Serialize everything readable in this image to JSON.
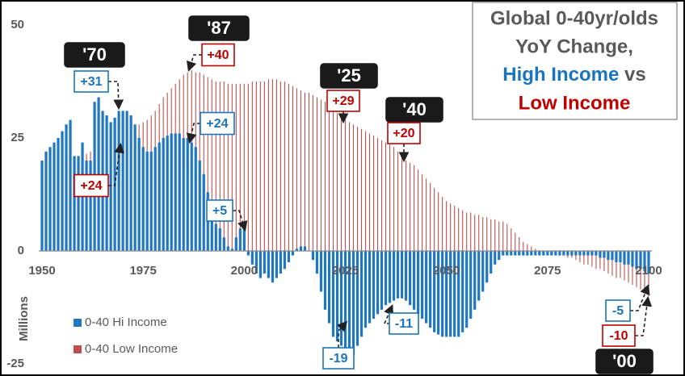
{
  "chart_data": {
    "type": "bar",
    "title": [
      "Global 0-40yr/olds",
      "YoY Change,",
      "High Income",
      "vs",
      "Low Income"
    ],
    "y_label": "Millions",
    "xlim": [
      1950,
      2100
    ],
    "xticks": [
      1950,
      1975,
      2000,
      2025,
      2050,
      2075,
      2100
    ],
    "ylim": [
      -27,
      54
    ],
    "yticks": [
      -25,
      0,
      25,
      50
    ],
    "x_start": 1950,
    "series": [
      {
        "name": "0-40 Hi Income",
        "color": "#1f77c4",
        "values": [
          20,
          22,
          23,
          24,
          25,
          26.5,
          28,
          29,
          21,
          21,
          24,
          20,
          20,
          33,
          34,
          31,
          30,
          28.5,
          29.5,
          31,
          31,
          31,
          30,
          28,
          25,
          23,
          22,
          22,
          23,
          24,
          25,
          25.5,
          26,
          26,
          26,
          25,
          25,
          24,
          23,
          20,
          17,
          13,
          9,
          6,
          5,
          3,
          1,
          0.5,
          3,
          5,
          5,
          -1,
          -3,
          -5,
          -6,
          -5,
          -6,
          -7,
          -6,
          -5,
          -4,
          -2.5,
          -1,
          0.5,
          1,
          1,
          0,
          -2,
          -5,
          -9,
          -13,
          -16,
          -19,
          -20,
          -21,
          -21.5,
          -22,
          -23,
          -21,
          -19,
          -17,
          -16,
          -15,
          -14,
          -13,
          -12,
          -11.5,
          -11,
          -10.5,
          -10.5,
          -11,
          -12,
          -13,
          -14,
          -15,
          -16,
          -17,
          -18,
          -18.5,
          -19,
          -19,
          -19,
          -19,
          -19,
          -18,
          -17,
          -15,
          -13,
          -11,
          -9,
          -7,
          -5,
          -3,
          -2,
          -1,
          -1,
          -1,
          -1,
          -1,
          -1,
          -1,
          -1,
          -1,
          -1,
          -1,
          -1,
          -1,
          -1,
          -1,
          -1,
          -1,
          -1,
          -1,
          -1,
          -1,
          -1,
          -1,
          -1,
          -1.5,
          -1.5,
          -2,
          -2,
          -2.5,
          -2.5,
          -3,
          -3,
          -3.5,
          -4,
          -4,
          -4.5,
          -5
        ]
      },
      {
        "name": "0-40 Low Income",
        "color": "#c0504d",
        "values": [
          13,
          14,
          15,
          16,
          17,
          18,
          19,
          19.5,
          20,
          20.5,
          21,
          21.5,
          22,
          22,
          22.5,
          23,
          23.5,
          24,
          24.5,
          25,
          25.5,
          26,
          27,
          27.5,
          28,
          28.5,
          29,
          30,
          31,
          32.5,
          34,
          35,
          36,
          37,
          38,
          39,
          39.5,
          40,
          39.5,
          39.5,
          39,
          38.5,
          38,
          37.5,
          37.5,
          37.5,
          37,
          37,
          37,
          37,
          37,
          37,
          37.5,
          37.5,
          37.5,
          37.5,
          38,
          38,
          38,
          37.5,
          37.5,
          37,
          36.5,
          36,
          35.5,
          35,
          35,
          34.5,
          34,
          33.5,
          33,
          32.5,
          31.5,
          30.5,
          29.5,
          29,
          28.5,
          28,
          27.5,
          27,
          26.5,
          26,
          25.5,
          25,
          24.5,
          24,
          23.5,
          23,
          22,
          21,
          20,
          19.5,
          19,
          18,
          17,
          16,
          15,
          14,
          13,
          12,
          11,
          10.5,
          10,
          9.5,
          9,
          8.5,
          8.5,
          8,
          8,
          7.5,
          7.5,
          7,
          7,
          6.5,
          6.5,
          6,
          5,
          4,
          3,
          2,
          1.5,
          1,
          0.5,
          0,
          0,
          0,
          -0.5,
          -0.5,
          -1,
          -1,
          -1.5,
          -1.5,
          -2,
          -2.5,
          -3,
          -3,
          -3.5,
          -4,
          -4,
          -4.5,
          -5,
          -5.5,
          -6,
          -6,
          -6.5,
          -7,
          -7.5,
          -8,
          -8.5,
          -9,
          -10
        ]
      }
    ],
    "annotations": [
      "'70",
      "+31",
      "'87",
      "+40",
      "'25",
      "+29",
      "'40",
      "+20",
      "+24",
      "+24",
      "+5",
      "-11",
      "-19",
      "-5",
      "-10",
      "'00"
    ]
  }
}
